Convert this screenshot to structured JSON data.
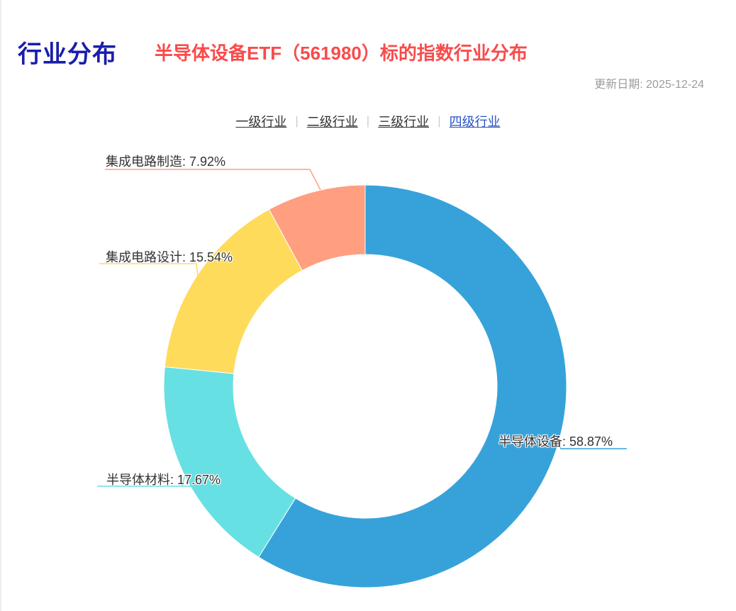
{
  "header": {
    "title": "行业分布",
    "subtitle": "半导体设备ETF（561980）标的指数行业分布",
    "update_date": "更新日期: 2025-12-24"
  },
  "tabs": {
    "separator": "|",
    "items": [
      {
        "label": "一级行业",
        "active": false
      },
      {
        "label": "二级行业",
        "active": false
      },
      {
        "label": "三级行业",
        "active": false
      },
      {
        "label": "四级行业",
        "active": true
      }
    ]
  },
  "colors": {
    "title": "#1a1ea9",
    "subtitle": "#f94b4b",
    "update_date": "#9a9ca0",
    "tab_text": "#333333",
    "tab_active": "#2a52c4",
    "tab_separator": "#cccccc",
    "label_text": "#333333"
  },
  "chart_data": {
    "type": "pie",
    "donut": true,
    "start_angle": "top",
    "direction": "clockwise",
    "legend": false,
    "unit": "%",
    "categories": [
      "半导体设备",
      "半导体材料",
      "集成电路设计",
      "集成电路制造"
    ],
    "values": [
      58.87,
      17.67,
      15.54,
      7.92
    ],
    "colors": [
      "#37a2da",
      "#67e0e3",
      "#ffdb5c",
      "#ff9f7f"
    ],
    "labels": [
      "半导体设备: 58.87%",
      "半导体材料: 17.67%",
      "集成电路设计: 15.54%",
      "集成电路制造: 7.92%"
    ]
  }
}
